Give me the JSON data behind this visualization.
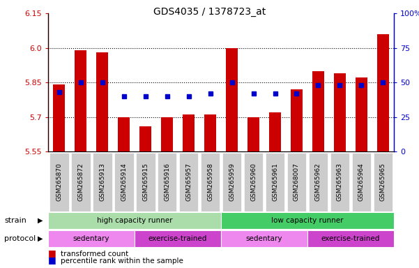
{
  "title": "GDS4035 / 1378723_at",
  "samples": [
    "GSM265870",
    "GSM265872",
    "GSM265913",
    "GSM265914",
    "GSM265915",
    "GSM265916",
    "GSM265957",
    "GSM265958",
    "GSM265959",
    "GSM265960",
    "GSM265961",
    "GSM268007",
    "GSM265962",
    "GSM265963",
    "GSM265964",
    "GSM265965"
  ],
  "transformed_count": [
    5.84,
    5.99,
    5.98,
    5.7,
    5.66,
    5.7,
    5.71,
    5.71,
    6.0,
    5.7,
    5.72,
    5.82,
    5.9,
    5.89,
    5.87,
    6.06
  ],
  "pct_values": [
    43,
    50,
    50,
    40,
    40,
    40,
    40,
    42,
    50,
    42,
    42,
    42,
    48,
    48,
    48,
    50
  ],
  "ylim_left": [
    5.55,
    6.15
  ],
  "ylim_right": [
    0,
    100
  ],
  "yticks_left": [
    5.55,
    5.7,
    5.85,
    6.0,
    6.15
  ],
  "yticks_right": [
    0,
    25,
    50,
    75,
    100
  ],
  "bar_color": "#cc0000",
  "dot_color": "#0000cc",
  "strain_groups": [
    {
      "label": "high capacity runner",
      "start": 0,
      "end": 8,
      "color": "#aaddaa"
    },
    {
      "label": "low capacity runner",
      "start": 8,
      "end": 16,
      "color": "#44cc66"
    }
  ],
  "protocol_groups": [
    {
      "label": "sedentary",
      "start": 0,
      "end": 4,
      "color": "#ee88ee"
    },
    {
      "label": "exercise-trained",
      "start": 4,
      "end": 8,
      "color": "#cc44cc"
    },
    {
      "label": "sedentary",
      "start": 8,
      "end": 12,
      "color": "#ee88ee"
    },
    {
      "label": "exercise-trained",
      "start": 12,
      "end": 16,
      "color": "#cc44cc"
    }
  ],
  "legend_red": "transformed count",
  "legend_blue": "percentile rank within the sample",
  "strain_label": "strain",
  "protocol_label": "protocol",
  "tick_bg_color": "#cccccc"
}
